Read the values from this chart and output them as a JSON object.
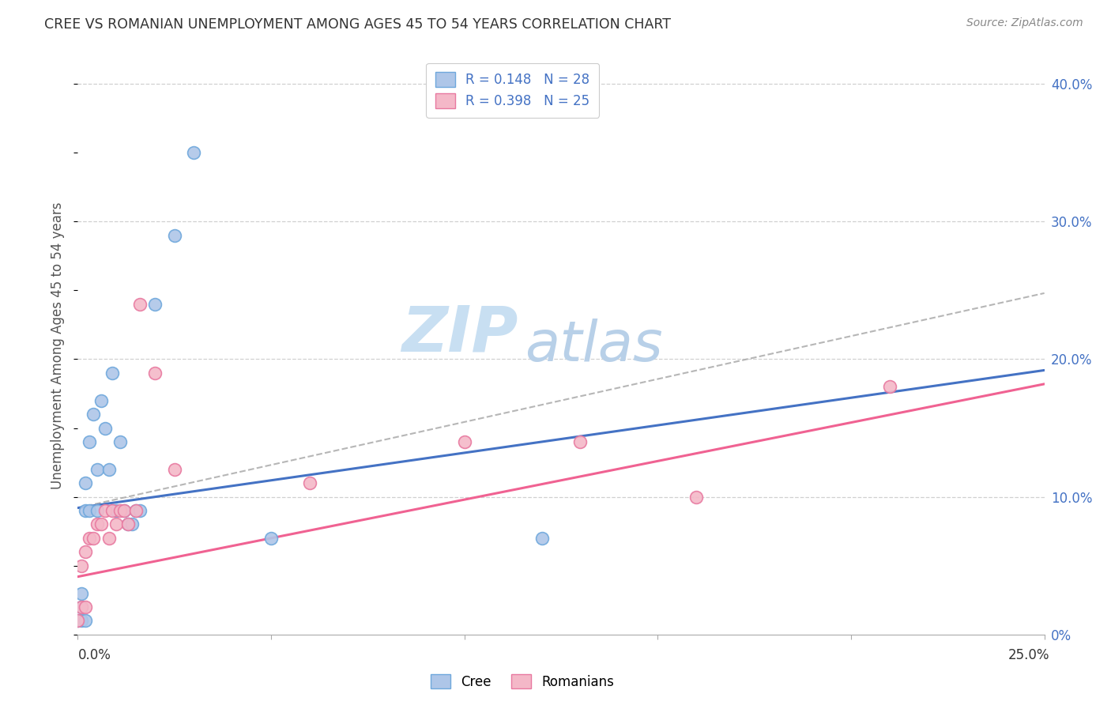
{
  "title": "CREE VS ROMANIAN UNEMPLOYMENT AMONG AGES 45 TO 54 YEARS CORRELATION CHART",
  "source": "Source: ZipAtlas.com",
  "ylabel": "Unemployment Among Ages 45 to 54 years",
  "legend_cree_r": "R = 0.148",
  "legend_cree_n": "N = 28",
  "legend_romanian_r": "R = 0.398",
  "legend_romanian_n": "N = 25",
  "legend_label1": "Cree",
  "legend_label2": "Romanians",
  "cree_fill_color": "#aec6e8",
  "romanian_fill_color": "#f4b8c8",
  "cree_edge_color": "#6fa8dc",
  "romanian_edge_color": "#e879a0",
  "cree_line_color": "#4472c4",
  "romanian_line_color": "#f06292",
  "tick_label_color": "#4472c4",
  "title_color": "#333333",
  "source_color": "#888888",
  "cree_scatter_x": [
    0.0,
    0.001,
    0.001,
    0.001,
    0.002,
    0.002,
    0.002,
    0.003,
    0.003,
    0.004,
    0.005,
    0.005,
    0.006,
    0.007,
    0.008,
    0.009,
    0.01,
    0.011,
    0.012,
    0.013,
    0.014,
    0.015,
    0.016,
    0.02,
    0.025,
    0.03,
    0.05,
    0.12
  ],
  "cree_scatter_y": [
    0.01,
    0.01,
    0.02,
    0.03,
    0.01,
    0.09,
    0.11,
    0.09,
    0.14,
    0.16,
    0.09,
    0.12,
    0.17,
    0.15,
    0.12,
    0.19,
    0.09,
    0.14,
    0.09,
    0.08,
    0.08,
    0.09,
    0.09,
    0.24,
    0.29,
    0.35,
    0.07,
    0.07
  ],
  "romanian_scatter_x": [
    0.0,
    0.001,
    0.001,
    0.002,
    0.002,
    0.003,
    0.004,
    0.005,
    0.006,
    0.007,
    0.008,
    0.009,
    0.01,
    0.011,
    0.012,
    0.013,
    0.015,
    0.016,
    0.02,
    0.025,
    0.06,
    0.1,
    0.13,
    0.16,
    0.21
  ],
  "romanian_scatter_y": [
    0.01,
    0.02,
    0.05,
    0.02,
    0.06,
    0.07,
    0.07,
    0.08,
    0.08,
    0.09,
    0.07,
    0.09,
    0.08,
    0.09,
    0.09,
    0.08,
    0.09,
    0.24,
    0.19,
    0.12,
    0.11,
    0.14,
    0.14,
    0.1,
    0.18
  ],
  "cree_line_x0": 0.0,
  "cree_line_y0": 0.092,
  "cree_line_x1": 0.25,
  "cree_line_y1": 0.192,
  "romanian_line_x0": 0.0,
  "romanian_line_y0": 0.042,
  "romanian_line_x1": 0.25,
  "romanian_line_y1": 0.182,
  "dash_line_x0": 0.0,
  "dash_line_y0": 0.092,
  "dash_line_x1": 0.25,
  "dash_line_y1": 0.248,
  "xlim": [
    0.0,
    0.25
  ],
  "ylim": [
    0.0,
    0.42
  ],
  "yticks": [
    0.0,
    0.1,
    0.2,
    0.3,
    0.4
  ],
  "ytick_labels": [
    "0%",
    "10.0%",
    "20.0%",
    "30.0%",
    "40.0%"
  ],
  "background_color": "#ffffff",
  "grid_color": "#d0d0d0"
}
